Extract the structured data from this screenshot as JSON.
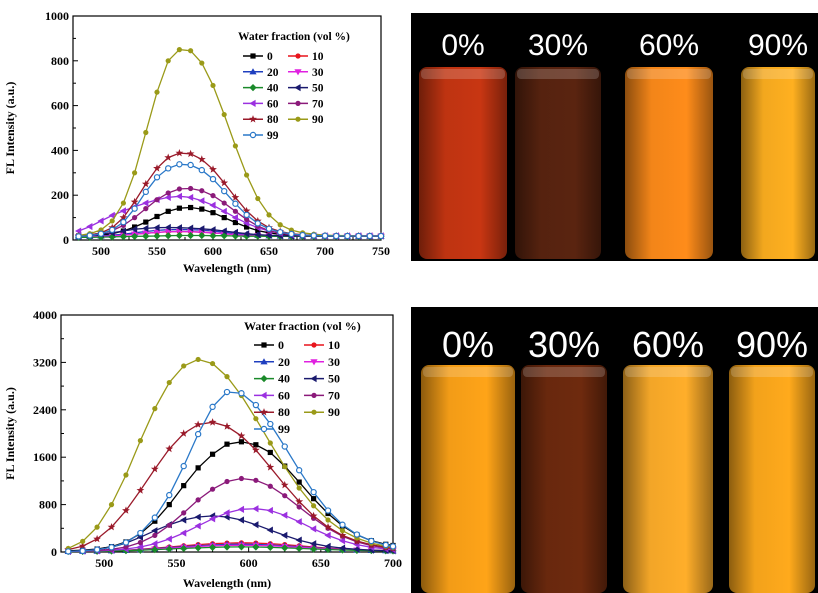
{
  "chart_data": [
    {
      "type": "line",
      "xlabel": "Wavelength (nm)",
      "ylabel": "FL Intensity (a.u.)",
      "xlim": [
        475,
        750
      ],
      "ylim": [
        0,
        1000
      ],
      "xticks": [
        500,
        550,
        600,
        650,
        700,
        750
      ],
      "yticks": [
        0,
        200,
        400,
        600,
        800,
        1000
      ],
      "legend_title": "Water fraction (vol %)",
      "legend_position": "top-right",
      "x": [
        480,
        490,
        500,
        510,
        520,
        530,
        540,
        550,
        560,
        570,
        580,
        590,
        600,
        610,
        620,
        630,
        640,
        650,
        660,
        670,
        680,
        690,
        700,
        710,
        720,
        730,
        740,
        750
      ],
      "series": [
        {
          "name": "0",
          "color": "#000000",
          "marker": "square",
          "values": [
            18,
            20,
            22,
            28,
            40,
            58,
            80,
            105,
            128,
            142,
            145,
            138,
            122,
            100,
            78,
            58,
            42,
            32,
            25,
            21,
            19,
            18,
            18,
            18,
            18,
            18,
            18,
            18
          ]
        },
        {
          "name": "10",
          "color": "#e8141c",
          "marker": "circle",
          "values": [
            15,
            16,
            17,
            19,
            22,
            26,
            30,
            34,
            37,
            38,
            37,
            35,
            32,
            28,
            24,
            21,
            19,
            18,
            17,
            17,
            17,
            17,
            17,
            17,
            17,
            17,
            17,
            17
          ]
        },
        {
          "name": "20",
          "color": "#1f3fbf",
          "marker": "triangle",
          "values": [
            15,
            16,
            18,
            21,
            26,
            32,
            38,
            43,
            46,
            47,
            46,
            44,
            40,
            35,
            29,
            24,
            21,
            19,
            18,
            17,
            17,
            17,
            17,
            17,
            17,
            17,
            17,
            17
          ]
        },
        {
          "name": "30",
          "color": "#e020e0",
          "marker": "tri-down",
          "values": [
            14,
            15,
            16,
            18,
            22,
            26,
            30,
            34,
            37,
            38,
            37,
            35,
            32,
            28,
            24,
            21,
            19,
            18,
            17,
            17,
            17,
            17,
            17,
            17,
            17,
            17,
            17,
            17
          ]
        },
        {
          "name": "40",
          "color": "#1a8a2a",
          "marker": "diamond",
          "values": [
            12,
            12,
            13,
            14,
            15,
            16,
            17,
            18,
            19,
            20,
            20,
            20,
            19,
            19,
            18,
            17,
            17,
            16,
            16,
            16,
            16,
            16,
            16,
            16,
            16,
            16,
            16,
            16
          ]
        },
        {
          "name": "50",
          "color": "#1a1a6e",
          "marker": "tri-left",
          "values": [
            20,
            22,
            26,
            32,
            40,
            48,
            52,
            55,
            56,
            55,
            53,
            50,
            46,
            40,
            34,
            28,
            24,
            21,
            19,
            18,
            18,
            18,
            18,
            18,
            18,
            18,
            18,
            18
          ]
        },
        {
          "name": "60",
          "color": "#9b30e0",
          "marker": "tri-left",
          "values": [
            40,
            60,
            85,
            110,
            130,
            148,
            165,
            180,
            190,
            195,
            190,
            175,
            155,
            128,
            100,
            75,
            55,
            40,
            30,
            24,
            21,
            19,
            18,
            18,
            18,
            18,
            18,
            18
          ]
        },
        {
          "name": "70",
          "color": "#8b1a7a",
          "marker": "circle",
          "values": [
            20,
            24,
            30,
            42,
            65,
            100,
            140,
            180,
            210,
            228,
            230,
            220,
            198,
            165,
            128,
            92,
            62,
            42,
            30,
            24,
            21,
            19,
            18,
            18,
            18,
            18,
            18,
            18
          ]
        },
        {
          "name": "80",
          "color": "#9a1a2a",
          "marker": "star",
          "values": [
            18,
            22,
            32,
            55,
            100,
            170,
            250,
            320,
            368,
            388,
            385,
            360,
            315,
            255,
            190,
            130,
            85,
            55,
            38,
            28,
            23,
            20,
            19,
            18,
            18,
            18,
            18,
            18
          ]
        },
        {
          "name": "90",
          "color": "#9a9a18",
          "marker": "circle",
          "values": [
            20,
            28,
            45,
            85,
            165,
            300,
            480,
            660,
            800,
            850,
            845,
            790,
            690,
            560,
            420,
            290,
            185,
            112,
            68,
            44,
            32,
            26,
            22,
            20,
            19,
            18,
            18,
            18
          ]
        },
        {
          "name": "99",
          "color": "#2a78c8",
          "marker": "open-circle",
          "values": [
            16,
            20,
            28,
            45,
            80,
            140,
            215,
            280,
            320,
            338,
            335,
            312,
            272,
            218,
            162,
            112,
            74,
            50,
            35,
            27,
            22,
            20,
            19,
            18,
            18,
            18,
            18,
            18
          ]
        }
      ]
    },
    {
      "type": "line",
      "xlabel": "Wavelength (nm)",
      "ylabel": "FL Intensity (a.u.)",
      "xlim": [
        470,
        700
      ],
      "ylim": [
        0,
        4000
      ],
      "xticks": [
        500,
        550,
        600,
        650,
        700
      ],
      "yticks": [
        0,
        800,
        1600,
        2400,
        3200,
        4000
      ],
      "legend_title": "Water fraction (vol %)",
      "legend_position": "top-right",
      "x": [
        475,
        485,
        495,
        505,
        515,
        525,
        535,
        545,
        555,
        565,
        575,
        585,
        595,
        605,
        615,
        625,
        635,
        645,
        655,
        665,
        675,
        685,
        695,
        700
      ],
      "series": [
        {
          "name": "0",
          "color": "#000000",
          "marker": "square",
          "values": [
            20,
            30,
            50,
            90,
            170,
            310,
            520,
            800,
            1120,
            1420,
            1650,
            1820,
            1860,
            1810,
            1680,
            1450,
            1180,
            900,
            650,
            440,
            290,
            190,
            130,
            110
          ]
        },
        {
          "name": "10",
          "color": "#e8141c",
          "marker": "circle",
          "values": [
            10,
            12,
            15,
            20,
            30,
            45,
            65,
            85,
            105,
            125,
            140,
            150,
            155,
            150,
            140,
            125,
            105,
            85,
            65,
            50,
            38,
            30,
            25,
            22
          ]
        },
        {
          "name": "20",
          "color": "#1f3fbf",
          "marker": "triangle",
          "values": [
            10,
            12,
            15,
            20,
            28,
            40,
            55,
            72,
            90,
            105,
            118,
            128,
            132,
            128,
            118,
            104,
            88,
            72,
            56,
            44,
            34,
            27,
            22,
            20
          ]
        },
        {
          "name": "30",
          "color": "#e020e0",
          "marker": "tri-down",
          "values": [
            10,
            12,
            14,
            18,
            25,
            35,
            48,
            62,
            78,
            92,
            104,
            112,
            115,
            112,
            104,
            92,
            78,
            64,
            50,
            40,
            32,
            26,
            22,
            20
          ]
        },
        {
          "name": "40",
          "color": "#1a8a2a",
          "marker": "diamond",
          "values": [
            8,
            10,
            12,
            16,
            22,
            30,
            40,
            50,
            60,
            70,
            78,
            84,
            86,
            84,
            78,
            70,
            60,
            50,
            42,
            34,
            28,
            24,
            20,
            18
          ]
        },
        {
          "name": "50",
          "color": "#1a1a6e",
          "marker": "tri-left",
          "values": [
            10,
            20,
            40,
            80,
            150,
            250,
            360,
            460,
            540,
            590,
            610,
            590,
            540,
            460,
            370,
            280,
            200,
            140,
            95,
            65,
            45,
            32,
            24,
            20
          ]
        },
        {
          "name": "60",
          "color": "#9b30e0",
          "marker": "tri-left",
          "values": [
            10,
            14,
            20,
            30,
            50,
            85,
            140,
            220,
            320,
            440,
            560,
            660,
            720,
            730,
            700,
            620,
            510,
            390,
            280,
            190,
            125,
            80,
            52,
            40
          ]
        },
        {
          "name": "70",
          "color": "#8b1a7a",
          "marker": "circle",
          "values": [
            10,
            15,
            25,
            45,
            85,
            160,
            280,
            450,
            660,
            880,
            1060,
            1190,
            1240,
            1210,
            1110,
            950,
            760,
            570,
            400,
            265,
            170,
            108,
            70,
            55
          ]
        },
        {
          "name": "80",
          "color": "#9a1a2a",
          "marker": "star",
          "values": [
            40,
            100,
            220,
            420,
            700,
            1040,
            1400,
            1740,
            2000,
            2150,
            2190,
            2120,
            1960,
            1720,
            1430,
            1130,
            850,
            610,
            420,
            280,
            185,
            122,
            82,
            65
          ]
        },
        {
          "name": "90",
          "color": "#9a9a18",
          "marker": "circle",
          "values": [
            60,
            180,
            420,
            800,
            1300,
            1880,
            2420,
            2860,
            3140,
            3250,
            3180,
            2960,
            2640,
            2250,
            1840,
            1440,
            1080,
            780,
            540,
            360,
            235,
            150,
            96,
            75
          ]
        },
        {
          "name": "99",
          "color": "#2a78c8",
          "marker": "open-circle",
          "values": [
            10,
            20,
            40,
            80,
            160,
            320,
            580,
            960,
            1450,
            1990,
            2450,
            2700,
            2680,
            2480,
            2160,
            1780,
            1380,
            1010,
            700,
            460,
            295,
            186,
            118,
            95
          ]
        }
      ]
    }
  ],
  "photos": [
    {
      "labels": [
        "0%",
        "30%",
        "60%",
        "90%"
      ],
      "glow_colors": [
        "#c83612",
        "#5a2410",
        "#ff8c1a",
        "#ffb020"
      ]
    },
    {
      "labels": [
        "0%",
        "30%",
        "60%",
        "90%"
      ],
      "glow_colors": [
        "#ffa418",
        "#6e2a0e",
        "#ffae2a",
        "#ffaa1c"
      ]
    }
  ]
}
